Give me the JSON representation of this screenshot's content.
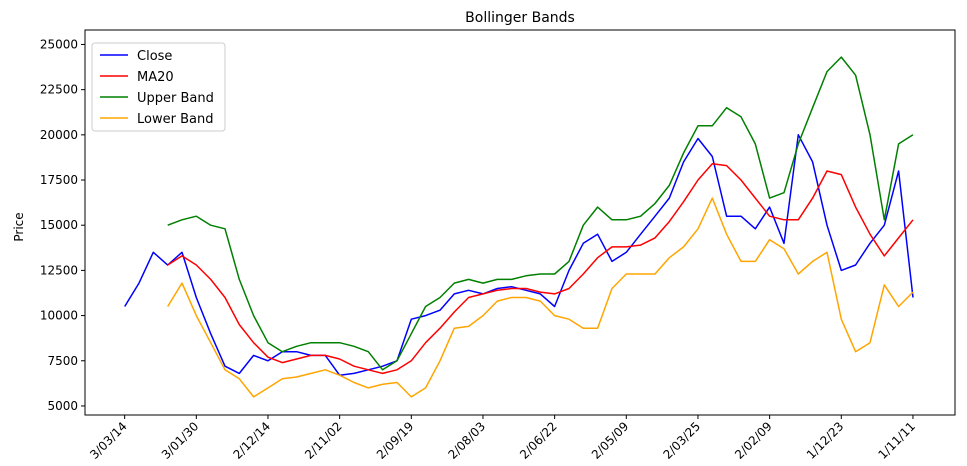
{
  "chart_data": {
    "type": "line",
    "title": "Bollinger Bands",
    "y_label": "Price",
    "x": [
      0,
      6,
      12,
      18,
      24,
      30,
      36,
      42,
      48,
      54,
      60,
      66,
      72,
      78,
      84,
      90,
      96,
      102,
      108,
      114,
      120,
      126,
      132,
      138,
      144,
      150,
      156,
      162,
      168,
      174,
      180,
      186,
      192,
      198,
      204,
      210,
      216,
      222,
      228,
      234,
      240,
      246,
      252,
      258,
      264,
      270,
      276,
      282,
      288,
      294,
      300,
      306,
      312,
      318,
      324,
      330
    ],
    "xlim": [
      -16.6,
      347.6
    ],
    "xticks": [
      {
        "value": 0,
        "label": "3/03/14"
      },
      {
        "value": 30,
        "label": "3/01/30"
      },
      {
        "value": 60,
        "label": "2/12/14"
      },
      {
        "value": 90,
        "label": "2/11/02"
      },
      {
        "value": 120,
        "label": "2/09/19"
      },
      {
        "value": 150,
        "label": "2/08/03"
      },
      {
        "value": 180,
        "label": "2/06/22"
      },
      {
        "value": 210,
        "label": "2/05/09"
      },
      {
        "value": 240,
        "label": "2/03/25"
      },
      {
        "value": 270,
        "label": "2/02/09"
      },
      {
        "value": 300,
        "label": "1/12/23"
      },
      {
        "value": 330,
        "label": "1/11/11"
      }
    ],
    "ylim": [
      4500,
      25800
    ],
    "yticks": [
      5000,
      7500,
      10000,
      12500,
      15000,
      17500,
      20000,
      22500,
      25000
    ],
    "legend": "upper left",
    "series": [
      {
        "name": "Close",
        "color": "#0000ff",
        "values": [
          10500,
          11800,
          13500,
          12800,
          13500,
          11000,
          9000,
          7200,
          6800,
          7800,
          7500,
          8000,
          8000,
          7800,
          7800,
          6700,
          6800,
          7000,
          7200,
          7500,
          9800,
          10000,
          10300,
          11200,
          11400,
          11200,
          11500,
          11600,
          11400,
          11200,
          10500,
          12500,
          14000,
          14500,
          13000,
          13500,
          14500,
          15500,
          16500,
          18500,
          19800,
          18800,
          15500,
          15500,
          14800,
          16000,
          14000,
          20000,
          18500,
          15000,
          12500,
          12800,
          14000,
          15000,
          18000,
          11000
        ]
      },
      {
        "name": "MA20",
        "color": "#ff0000",
        "values": [
          null,
          null,
          null,
          12800,
          13300,
          12800,
          12000,
          11000,
          9500,
          8500,
          7700,
          7400,
          7600,
          7800,
          7800,
          7600,
          7200,
          7000,
          6800,
          7000,
          7500,
          8500,
          9300,
          10200,
          11000,
          11200,
          11400,
          11500,
          11500,
          11300,
          11200,
          11500,
          12300,
          13200,
          13800,
          13800,
          13900,
          14300,
          15200,
          16300,
          17500,
          18400,
          18300,
          17500,
          16500,
          15500,
          15300,
          15300,
          16500,
          18000,
          17800,
          16000,
          14500,
          13300,
          14300,
          15300
        ]
      },
      {
        "name": "Upper Band",
        "color": "#008000",
        "values": [
          null,
          null,
          null,
          15000,
          15300,
          15500,
          15000,
          14800,
          12000,
          10000,
          8500,
          8000,
          8300,
          8500,
          8500,
          8500,
          8300,
          8000,
          7000,
          7500,
          9000,
          10500,
          11000,
          11800,
          12000,
          11800,
          12000,
          12000,
          12200,
          12300,
          12300,
          13000,
          15000,
          16000,
          15300,
          15300,
          15500,
          16200,
          17200,
          19000,
          20500,
          20500,
          21500,
          21000,
          19500,
          16500,
          16800,
          19500,
          21500,
          23500,
          24300,
          23300,
          20000,
          15300,
          19500,
          20000
        ]
      },
      {
        "name": "Lower Band",
        "color": "#ffa500",
        "values": [
          null,
          null,
          null,
          10500,
          11800,
          10000,
          8500,
          7000,
          6500,
          5500,
          6000,
          6500,
          6600,
          6800,
          7000,
          6700,
          6300,
          6000,
          6200,
          6300,
          5500,
          6000,
          7500,
          9300,
          9400,
          10000,
          10800,
          11000,
          11000,
          10800,
          10000,
          9800,
          9300,
          9300,
          11500,
          12300,
          12300,
          12300,
          13200,
          13800,
          14800,
          16500,
          14500,
          13000,
          13000,
          14200,
          13700,
          12300,
          13000,
          13500,
          9800,
          8000,
          8500,
          11700,
          10500,
          11300
        ]
      }
    ]
  }
}
